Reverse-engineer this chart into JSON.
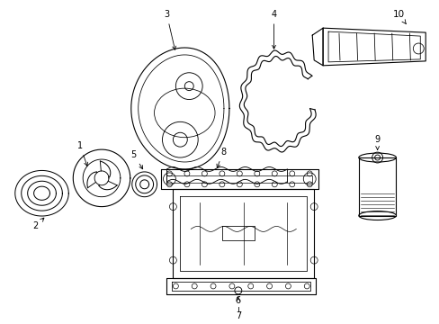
{
  "background_color": "#ffffff",
  "line_color": "#000000",
  "lw": 0.8,
  "figure_width": 4.89,
  "figure_height": 3.6,
  "dpi": 100,
  "xlim": [
    0,
    489
  ],
  "ylim": [
    0,
    360
  ]
}
